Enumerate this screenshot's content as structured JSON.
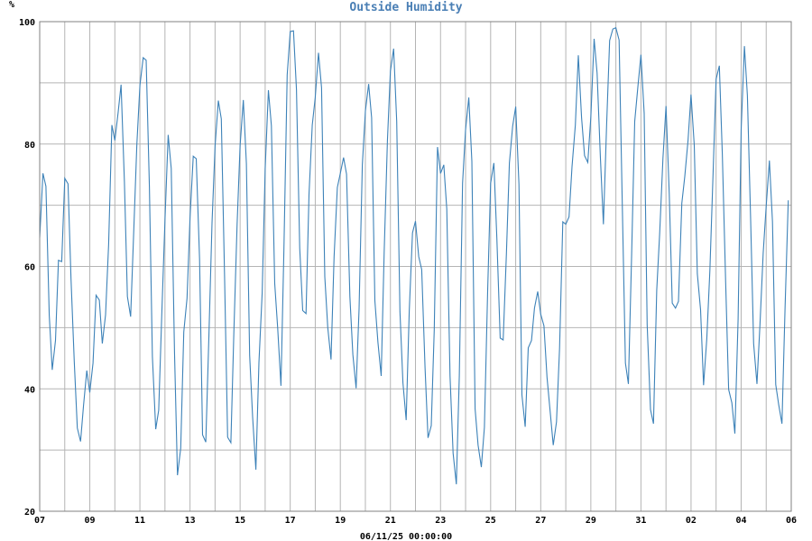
{
  "chart_data": {
    "type": "line",
    "title": "Outside Humidity",
    "ylabel": "%",
    "xlabel": "06/11/25 00:00:00",
    "ylim": [
      20,
      100
    ],
    "yticks": [
      20,
      40,
      60,
      80,
      100
    ],
    "xlim": [
      0,
      30
    ],
    "xticks": [
      0,
      2,
      4,
      6,
      8,
      10,
      12,
      14,
      16,
      18,
      20,
      22,
      24,
      26,
      28,
      30
    ],
    "xtick_labels": [
      "07",
      "09",
      "11",
      "13",
      "15",
      "17",
      "19",
      "21",
      "23",
      "25",
      "27",
      "29",
      "31",
      "02",
      "04",
      "06"
    ],
    "grid": true,
    "colors": {
      "series": "#3d82b8",
      "title": "#4a7fb5",
      "grid": "#b4b4b4"
    },
    "series": [
      {
        "values": [
          [
            0.0,
            64.7
          ],
          [
            0.13,
            75.2
          ],
          [
            0.25,
            73.1
          ],
          [
            0.38,
            52.0
          ],
          [
            0.5,
            43.1
          ],
          [
            0.63,
            47.9
          ],
          [
            0.75,
            61.0
          ],
          [
            0.88,
            60.8
          ],
          [
            1.0,
            74.4
          ],
          [
            1.13,
            73.5
          ],
          [
            1.25,
            58.0
          ],
          [
            1.38,
            44.5
          ],
          [
            1.5,
            33.6
          ],
          [
            1.63,
            31.4
          ],
          [
            1.75,
            37.3
          ],
          [
            1.88,
            43.0
          ],
          [
            2.0,
            39.4
          ],
          [
            2.13,
            44.2
          ],
          [
            2.25,
            55.3
          ],
          [
            2.38,
            54.5
          ],
          [
            2.5,
            47.4
          ],
          [
            2.63,
            52.1
          ],
          [
            2.75,
            63.6
          ],
          [
            2.88,
            83.1
          ],
          [
            3.0,
            80.6
          ],
          [
            3.13,
            85.1
          ],
          [
            3.25,
            89.7
          ],
          [
            3.38,
            73.8
          ],
          [
            3.5,
            55.1
          ],
          [
            3.63,
            51.8
          ],
          [
            3.75,
            65.2
          ],
          [
            3.88,
            80.0
          ],
          [
            4.0,
            89.6
          ],
          [
            4.13,
            94.1
          ],
          [
            4.25,
            93.7
          ],
          [
            4.38,
            73.0
          ],
          [
            4.5,
            45.3
          ],
          [
            4.63,
            33.4
          ],
          [
            4.75,
            36.5
          ],
          [
            4.88,
            53.0
          ],
          [
            5.0,
            67.4
          ],
          [
            5.13,
            81.5
          ],
          [
            5.25,
            76.0
          ],
          [
            5.38,
            46.1
          ],
          [
            5.5,
            25.9
          ],
          [
            5.63,
            30.3
          ],
          [
            5.75,
            49.3
          ],
          [
            5.88,
            54.8
          ],
          [
            6.0,
            67.9
          ],
          [
            6.13,
            78.0
          ],
          [
            6.25,
            77.6
          ],
          [
            6.38,
            61.2
          ],
          [
            6.5,
            32.5
          ],
          [
            6.63,
            31.3
          ],
          [
            6.75,
            47.9
          ],
          [
            6.88,
            67.1
          ],
          [
            7.0,
            79.7
          ],
          [
            7.13,
            87.1
          ],
          [
            7.25,
            84.1
          ],
          [
            7.38,
            58.4
          ],
          [
            7.5,
            32.1
          ],
          [
            7.63,
            31.2
          ],
          [
            7.75,
            49.2
          ],
          [
            7.88,
            66.9
          ],
          [
            8.0,
            79.7
          ],
          [
            8.13,
            87.2
          ],
          [
            8.25,
            76.8
          ],
          [
            8.38,
            45.5
          ],
          [
            8.5,
            35.4
          ],
          [
            8.63,
            26.8
          ],
          [
            8.75,
            44.3
          ],
          [
            8.88,
            55.7
          ],
          [
            9.0,
            75.9
          ],
          [
            9.13,
            88.8
          ],
          [
            9.25,
            83.0
          ],
          [
            9.38,
            57.2
          ],
          [
            9.5,
            49.9
          ],
          [
            9.63,
            40.5
          ],
          [
            9.75,
            62.9
          ],
          [
            9.88,
            91.3
          ],
          [
            10.0,
            98.4
          ],
          [
            10.13,
            98.5
          ],
          [
            10.25,
            88.9
          ],
          [
            10.38,
            63.0
          ],
          [
            10.5,
            52.8
          ],
          [
            10.63,
            52.3
          ],
          [
            10.75,
            71.8
          ],
          [
            10.88,
            83.1
          ],
          [
            11.0,
            87.6
          ],
          [
            11.13,
            94.9
          ],
          [
            11.25,
            89.2
          ],
          [
            11.38,
            58.3
          ],
          [
            11.5,
            50.0
          ],
          [
            11.63,
            44.8
          ],
          [
            11.75,
            61.6
          ],
          [
            11.88,
            72.9
          ],
          [
            12.0,
            75.2
          ],
          [
            12.13,
            77.8
          ],
          [
            12.25,
            75.1
          ],
          [
            12.38,
            55.1
          ],
          [
            12.5,
            45.6
          ],
          [
            12.63,
            40.1
          ],
          [
            12.75,
            53.1
          ],
          [
            12.88,
            76.6
          ],
          [
            13.0,
            85.4
          ],
          [
            13.13,
            89.8
          ],
          [
            13.25,
            84.3
          ],
          [
            13.38,
            54.4
          ],
          [
            13.5,
            47.6
          ],
          [
            13.63,
            42.1
          ],
          [
            13.75,
            62.3
          ],
          [
            13.88,
            80.5
          ],
          [
            14.0,
            91.9
          ],
          [
            14.13,
            95.6
          ],
          [
            14.25,
            83.7
          ],
          [
            14.38,
            52.6
          ],
          [
            14.5,
            41.0
          ],
          [
            14.63,
            34.9
          ],
          [
            14.75,
            52.7
          ],
          [
            14.88,
            65.5
          ],
          [
            15.0,
            67.4
          ],
          [
            15.13,
            61.6
          ],
          [
            15.25,
            59.5
          ],
          [
            15.38,
            43.5
          ],
          [
            15.5,
            32.0
          ],
          [
            15.63,
            34.0
          ],
          [
            15.75,
            49.6
          ],
          [
            15.88,
            79.5
          ],
          [
            16.0,
            75.2
          ],
          [
            16.13,
            76.6
          ],
          [
            16.25,
            69.4
          ],
          [
            16.38,
            42.1
          ],
          [
            16.5,
            29.5
          ],
          [
            16.63,
            24.4
          ],
          [
            16.75,
            42.2
          ],
          [
            16.88,
            73.6
          ],
          [
            17.0,
            82.3
          ],
          [
            17.13,
            87.6
          ],
          [
            17.25,
            77.2
          ],
          [
            17.38,
            36.7
          ],
          [
            17.5,
            30.8
          ],
          [
            17.63,
            27.2
          ],
          [
            17.75,
            33.7
          ],
          [
            17.88,
            56.0
          ],
          [
            18.0,
            73.6
          ],
          [
            18.13,
            76.9
          ],
          [
            18.25,
            64.6
          ],
          [
            18.38,
            48.3
          ],
          [
            18.5,
            48.0
          ],
          [
            18.63,
            62.1
          ],
          [
            18.75,
            76.9
          ],
          [
            18.88,
            82.9
          ],
          [
            19.0,
            86.1
          ],
          [
            19.13,
            73.4
          ],
          [
            19.25,
            39.0
          ],
          [
            19.38,
            33.8
          ],
          [
            19.5,
            46.7
          ],
          [
            19.63,
            47.9
          ],
          [
            19.75,
            53.2
          ],
          [
            19.88,
            55.9
          ],
          [
            20.0,
            52.2
          ],
          [
            20.13,
            50.3
          ],
          [
            20.25,
            41.9
          ],
          [
            20.38,
            36.1
          ],
          [
            20.5,
            30.8
          ],
          [
            20.63,
            34.6
          ],
          [
            20.75,
            46.6
          ],
          [
            20.88,
            67.3
          ],
          [
            21.0,
            66.9
          ],
          [
            21.13,
            68.1
          ],
          [
            21.25,
            76.3
          ],
          [
            21.38,
            83.1
          ],
          [
            21.5,
            94.5
          ],
          [
            21.63,
            84.3
          ],
          [
            21.75,
            78.1
          ],
          [
            21.88,
            77.0
          ],
          [
            22.0,
            84.5
          ],
          [
            22.13,
            97.2
          ],
          [
            22.25,
            91.6
          ],
          [
            22.38,
            78.0
          ],
          [
            22.5,
            66.9
          ],
          [
            22.63,
            83.3
          ],
          [
            22.75,
            96.9
          ],
          [
            22.88,
            98.8
          ],
          [
            23.0,
            99.0
          ],
          [
            23.13,
            97.0
          ],
          [
            23.25,
            71.1
          ],
          [
            23.38,
            44.2
          ],
          [
            23.5,
            40.8
          ],
          [
            23.63,
            62.0
          ],
          [
            23.75,
            83.7
          ],
          [
            23.88,
            89.5
          ],
          [
            24.0,
            94.6
          ],
          [
            24.13,
            85.0
          ],
          [
            24.25,
            50.5
          ],
          [
            24.38,
            36.6
          ],
          [
            24.5,
            34.3
          ],
          [
            24.63,
            56.1
          ],
          [
            24.75,
            65.5
          ],
          [
            24.88,
            77.7
          ],
          [
            25.0,
            86.2
          ],
          [
            25.13,
            71.8
          ],
          [
            25.25,
            54.0
          ],
          [
            25.38,
            53.2
          ],
          [
            25.5,
            54.3
          ],
          [
            25.63,
            70.3
          ],
          [
            25.75,
            74.7
          ],
          [
            25.88,
            80.6
          ],
          [
            26.0,
            88.1
          ],
          [
            26.13,
            79.8
          ],
          [
            26.25,
            58.8
          ],
          [
            26.38,
            52.9
          ],
          [
            26.5,
            40.6
          ],
          [
            26.63,
            48.2
          ],
          [
            26.75,
            59.3
          ],
          [
            26.88,
            75.4
          ],
          [
            27.0,
            90.6
          ],
          [
            27.13,
            92.8
          ],
          [
            27.25,
            78.4
          ],
          [
            27.38,
            57.4
          ],
          [
            27.5,
            39.9
          ],
          [
            27.63,
            37.7
          ],
          [
            27.75,
            32.7
          ],
          [
            27.88,
            51.4
          ],
          [
            28.0,
            82.4
          ],
          [
            28.13,
            96.0
          ],
          [
            28.25,
            87.9
          ],
          [
            28.38,
            67.6
          ],
          [
            28.5,
            47.4
          ],
          [
            28.63,
            40.8
          ],
          [
            28.75,
            50.4
          ],
          [
            28.88,
            62.2
          ],
          [
            29.0,
            69.8
          ],
          [
            29.13,
            77.3
          ],
          [
            29.25,
            67.3
          ],
          [
            29.38,
            40.7
          ],
          [
            29.5,
            37.4
          ],
          [
            29.63,
            34.3
          ],
          [
            29.75,
            53.0
          ],
          [
            29.88,
            70.8
          ]
        ]
      }
    ]
  }
}
